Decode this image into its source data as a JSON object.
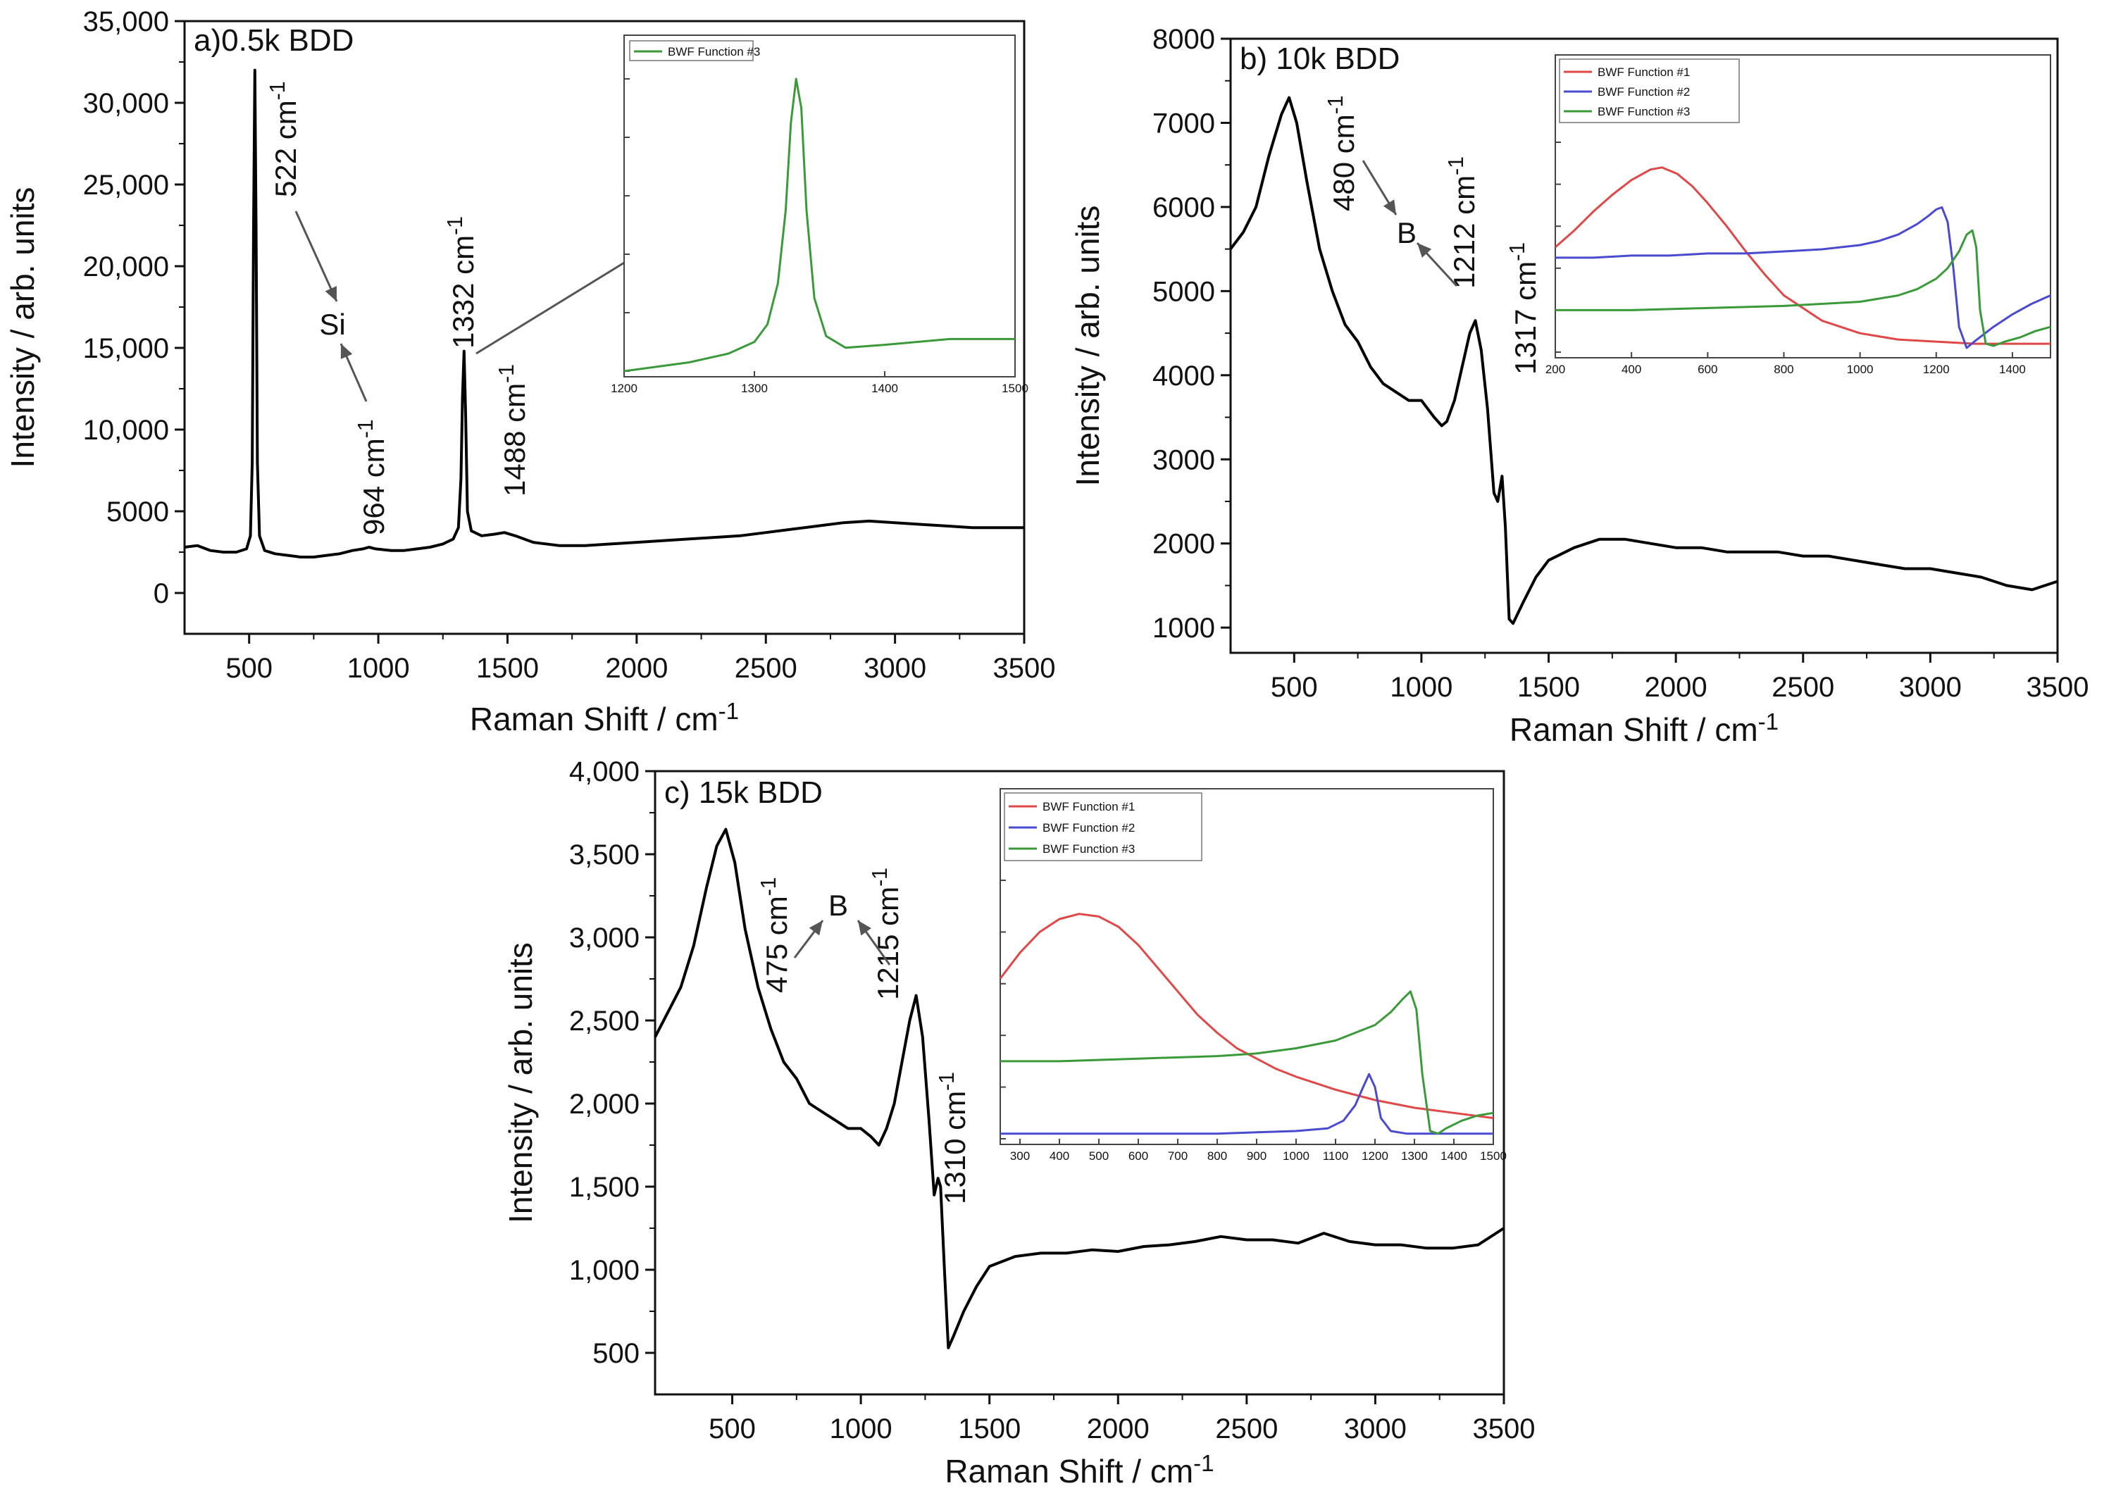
{
  "chart_data": [
    {
      "type": "line",
      "panel_label": "a)0.5k BDD",
      "xlabel": "Raman Shift / cm",
      "xlabel_sup": "-1",
      "ylabel": "Intensity / arb. units",
      "xlim": [
        250,
        3500
      ],
      "ylim": [
        -2500,
        35000
      ],
      "xticks": [
        500,
        1000,
        1500,
        2000,
        2500,
        3000,
        3500
      ],
      "xtick_labels": [
        "500",
        "1000",
        "1500",
        "2000",
        "2500",
        "3000",
        "3500"
      ],
      "yticks": [
        0,
        5000,
        10000,
        15000,
        20000,
        25000,
        30000,
        35000
      ],
      "ytick_labels": [
        "0",
        "5000",
        "10,000",
        "15,000",
        "20,000",
        "25,000",
        "30,000",
        "35,000"
      ],
      "series": [
        {
          "name": "spectrum",
          "color": "#000000",
          "x": [
            250,
            300,
            350,
            400,
            450,
            490,
            505,
            512,
            517,
            522,
            527,
            532,
            540,
            560,
            600,
            650,
            700,
            750,
            800,
            850,
            900,
            940,
            964,
            990,
            1050,
            1100,
            1150,
            1200,
            1250,
            1290,
            1310,
            1320,
            1326,
            1332,
            1338,
            1345,
            1360,
            1400,
            1450,
            1488,
            1530,
            1600,
            1700,
            1800,
            1900,
            2000,
            2100,
            2200,
            2300,
            2400,
            2500,
            2600,
            2700,
            2800,
            2900,
            3000,
            3100,
            3200,
            3300,
            3400,
            3500
          ],
          "y": [
            2800,
            2900,
            2600,
            2500,
            2500,
            2700,
            3500,
            8000,
            22000,
            32000,
            22000,
            8000,
            3500,
            2600,
            2400,
            2300,
            2200,
            2200,
            2300,
            2400,
            2600,
            2700,
            2800,
            2700,
            2600,
            2600,
            2700,
            2800,
            3000,
            3300,
            4000,
            7000,
            12000,
            14800,
            11000,
            5000,
            3800,
            3500,
            3600,
            3700,
            3500,
            3100,
            2900,
            2900,
            3000,
            3100,
            3200,
            3300,
            3400,
            3500,
            3700,
            3900,
            4100,
            4300,
            4400,
            4300,
            4200,
            4100,
            4000,
            4000,
            4000
          ]
        }
      ],
      "annotations": [
        {
          "text": "522 cm",
          "sup": "-1"
        },
        {
          "text": "964 cm",
          "sup": "-1"
        },
        {
          "text": "1332 cm",
          "sup": "-1"
        },
        {
          "text": "1488 cm",
          "sup": "-1"
        },
        {
          "text": "Si",
          "sup": ""
        }
      ],
      "inset": {
        "xlim": [
          1200,
          1500
        ],
        "ylim": [
          0,
          1
        ],
        "xticks": [
          1200,
          1300,
          1400,
          1500
        ],
        "xtick_labels": [
          "1200",
          "1300",
          "1400",
          "1500"
        ],
        "series": [
          {
            "name": "BWF Function #3",
            "color": "#3a9a3a",
            "x": [
              1200,
              1250,
              1280,
              1300,
              1310,
              1318,
              1324,
              1328,
              1332,
              1336,
              1340,
              1346,
              1355,
              1370,
              1400,
              1450,
              1500
            ],
            "y": [
              0.0,
              0.03,
              0.06,
              0.1,
              0.16,
              0.3,
              0.55,
              0.85,
              1.0,
              0.9,
              0.55,
              0.25,
              0.12,
              0.08,
              0.09,
              0.11,
              0.11
            ]
          }
        ]
      }
    },
    {
      "type": "line",
      "panel_label": "b) 10k BDD",
      "xlabel": "Raman Shift / cm",
      "xlabel_sup": "-1",
      "ylabel": "Intensity / arb. units",
      "xlim": [
        250,
        3500
      ],
      "ylim": [
        700,
        8000
      ],
      "xticks": [
        500,
        1000,
        1500,
        2000,
        2500,
        3000,
        3500
      ],
      "xtick_labels": [
        "500",
        "1000",
        "1500",
        "2000",
        "2500",
        "3000",
        "3500"
      ],
      "yticks": [
        1000,
        2000,
        3000,
        4000,
        5000,
        6000,
        7000,
        8000
      ],
      "ytick_labels": [
        "1000",
        "2000",
        "3000",
        "4000",
        "5000",
        "6000",
        "7000",
        "8000"
      ],
      "series": [
        {
          "name": "spectrum",
          "color": "#000000",
          "x": [
            250,
            300,
            350,
            400,
            450,
            480,
            510,
            550,
            600,
            650,
            700,
            750,
            800,
            850,
            900,
            950,
            1000,
            1050,
            1080,
            1100,
            1130,
            1160,
            1190,
            1212,
            1235,
            1260,
            1285,
            1300,
            1317,
            1330,
            1345,
            1360,
            1400,
            1450,
            1500,
            1600,
            1700,
            1800,
            1900,
            2000,
            2100,
            2200,
            2300,
            2400,
            2500,
            2600,
            2700,
            2800,
            2900,
            3000,
            3100,
            3200,
            3300,
            3400,
            3500
          ],
          "y": [
            5500,
            5700,
            6000,
            6600,
            7100,
            7300,
            7000,
            6300,
            5500,
            5000,
            4600,
            4400,
            4100,
            3900,
            3800,
            3700,
            3700,
            3500,
            3400,
            3450,
            3700,
            4100,
            4500,
            4650,
            4300,
            3600,
            2600,
            2500,
            2800,
            2200,
            1100,
            1050,
            1300,
            1600,
            1800,
            1950,
            2050,
            2050,
            2000,
            1950,
            1950,
            1900,
            1900,
            1900,
            1850,
            1850,
            1800,
            1750,
            1700,
            1700,
            1650,
            1600,
            1500,
            1450,
            1550
          ]
        }
      ],
      "annotations": [
        {
          "text": "480 cm",
          "sup": "-1"
        },
        {
          "text": "1212 cm",
          "sup": "-1"
        },
        {
          "text": "1317 cm",
          "sup": "-1"
        },
        {
          "text": "B",
          "sup": ""
        }
      ],
      "inset": {
        "xlim": [
          200,
          1500
        ],
        "ylim": [
          0,
          1
        ],
        "xticks": [
          200,
          400,
          600,
          800,
          1000,
          1200,
          1400
        ],
        "xtick_labels": [
          "200",
          "400",
          "600",
          "800",
          "1000",
          "1200",
          "1400"
        ],
        "series": [
          {
            "name": "BWF Function #1",
            "color": "#e04848",
            "x": [
              200,
              250,
              300,
              350,
              400,
              450,
              480,
              520,
              560,
              600,
              650,
              700,
              750,
              800,
              900,
              1000,
              1100,
              1200,
              1300,
              1400,
              1500
            ],
            "y": [
              0.5,
              0.58,
              0.67,
              0.75,
              0.82,
              0.87,
              0.88,
              0.85,
              0.79,
              0.71,
              0.6,
              0.48,
              0.37,
              0.27,
              0.15,
              0.09,
              0.06,
              0.05,
              0.04,
              0.04,
              0.04
            ]
          },
          {
            "name": "BWF Function #2",
            "color": "#4a4ad0",
            "x": [
              200,
              300,
              400,
              500,
              600,
              700,
              800,
              900,
              1000,
              1050,
              1100,
              1150,
              1180,
              1200,
              1215,
              1230,
              1245,
              1260,
              1280,
              1300,
              1350,
              1400,
              1450,
              1500
            ],
            "y": [
              0.45,
              0.45,
              0.46,
              0.46,
              0.47,
              0.47,
              0.48,
              0.49,
              0.51,
              0.53,
              0.56,
              0.61,
              0.65,
              0.68,
              0.69,
              0.62,
              0.4,
              0.12,
              0.02,
              0.05,
              0.12,
              0.18,
              0.23,
              0.27
            ]
          },
          {
            "name": "BWF Function #3",
            "color": "#3a9a3a",
            "x": [
              200,
              400,
              600,
              800,
              1000,
              1100,
              1150,
              1200,
              1230,
              1260,
              1280,
              1295,
              1305,
              1315,
              1330,
              1350,
              1380,
              1420,
              1460,
              1500
            ],
            "y": [
              0.2,
              0.2,
              0.21,
              0.22,
              0.24,
              0.27,
              0.3,
              0.35,
              0.4,
              0.48,
              0.56,
              0.58,
              0.5,
              0.2,
              0.04,
              0.03,
              0.05,
              0.07,
              0.1,
              0.12
            ]
          }
        ]
      }
    },
    {
      "type": "line",
      "panel_label": "c) 15k BDD",
      "xlabel": "Raman Shift / cm",
      "xlabel_sup": "-1",
      "ylabel": "Intensity / arb. units",
      "xlim": [
        200,
        3500
      ],
      "ylim": [
        250,
        4000
      ],
      "xticks": [
        500,
        1000,
        1500,
        2000,
        2500,
        3000,
        3500
      ],
      "xtick_labels": [
        "500",
        "1000",
        "1500",
        "2000",
        "2500",
        "3000",
        "3500"
      ],
      "yticks": [
        500,
        1000,
        1500,
        2000,
        2500,
        3000,
        3500,
        4000
      ],
      "ytick_labels": [
        "500",
        "1,000",
        "1,500",
        "2,000",
        "2,500",
        "3,000",
        "3,500",
        "4,000"
      ],
      "series": [
        {
          "name": "spectrum",
          "color": "#000000",
          "x": [
            200,
            250,
            300,
            350,
            400,
            440,
            475,
            510,
            550,
            600,
            650,
            700,
            750,
            800,
            850,
            900,
            950,
            1000,
            1040,
            1070,
            1100,
            1130,
            1160,
            1190,
            1215,
            1240,
            1265,
            1285,
            1300,
            1310,
            1325,
            1340,
            1360,
            1400,
            1450,
            1500,
            1600,
            1700,
            1800,
            1900,
            2000,
            2100,
            2200,
            2300,
            2400,
            2500,
            2600,
            2700,
            2800,
            2900,
            3000,
            3100,
            3200,
            3300,
            3400,
            3500
          ],
          "y": [
            2400,
            2550,
            2700,
            2950,
            3300,
            3550,
            3650,
            3450,
            3050,
            2700,
            2450,
            2250,
            2150,
            2000,
            1950,
            1900,
            1850,
            1850,
            1800,
            1750,
            1850,
            2000,
            2250,
            2500,
            2650,
            2400,
            1900,
            1450,
            1550,
            1500,
            1000,
            530,
            600,
            750,
            900,
            1020,
            1080,
            1100,
            1100,
            1120,
            1110,
            1140,
            1150,
            1170,
            1200,
            1180,
            1180,
            1160,
            1220,
            1170,
            1150,
            1150,
            1130,
            1130,
            1150,
            1250
          ]
        }
      ],
      "annotations": [
        {
          "text": "475 cm",
          "sup": "-1"
        },
        {
          "text": "1215 cm",
          "sup": "-1"
        },
        {
          "text": "1310 cm",
          "sup": "-1"
        },
        {
          "text": "B",
          "sup": ""
        }
      ],
      "inset": {
        "xlim": [
          250,
          1500
        ],
        "ylim": [
          0,
          1
        ],
        "xticks": [
          300,
          400,
          500,
          600,
          700,
          800,
          900,
          1000,
          1100,
          1200,
          1300,
          1400,
          1500
        ],
        "xtick_labels": [
          "300",
          "400",
          "500",
          "600",
          "700",
          "800",
          "900",
          "1000",
          "1100",
          "1200",
          "1300",
          "1400",
          "1500"
        ],
        "series": [
          {
            "name": "BWF Function #1",
            "color": "#e04848",
            "x": [
              250,
              300,
              350,
              400,
              450,
              500,
              550,
              600,
              650,
              700,
              750,
              800,
              850,
              900,
              950,
              1000,
              1100,
              1200,
              1300,
              1400,
              1500
            ],
            "y": [
              0.62,
              0.72,
              0.8,
              0.85,
              0.87,
              0.86,
              0.82,
              0.75,
              0.66,
              0.57,
              0.48,
              0.41,
              0.35,
              0.31,
              0.27,
              0.24,
              0.19,
              0.15,
              0.12,
              0.1,
              0.08
            ]
          },
          {
            "name": "BWF Function #2",
            "color": "#4a4ad0",
            "x": [
              250,
              400,
              600,
              800,
              1000,
              1080,
              1120,
              1150,
              1170,
              1185,
              1200,
              1215,
              1240,
              1280,
              1350,
              1500
            ],
            "y": [
              0.02,
              0.02,
              0.02,
              0.02,
              0.03,
              0.04,
              0.07,
              0.13,
              0.2,
              0.25,
              0.2,
              0.08,
              0.03,
              0.02,
              0.02,
              0.02
            ]
          },
          {
            "name": "BWF Function #3",
            "color": "#3a9a3a",
            "x": [
              250,
              400,
              600,
              800,
              900,
              1000,
              1100,
              1200,
              1240,
              1270,
              1290,
              1305,
              1320,
              1340,
              1360,
              1380,
              1420,
              1460,
              1500
            ],
            "y": [
              0.3,
              0.3,
              0.31,
              0.32,
              0.33,
              0.35,
              0.38,
              0.44,
              0.49,
              0.54,
              0.57,
              0.5,
              0.25,
              0.03,
              0.02,
              0.04,
              0.07,
              0.09,
              0.1
            ]
          }
        ]
      }
    }
  ]
}
